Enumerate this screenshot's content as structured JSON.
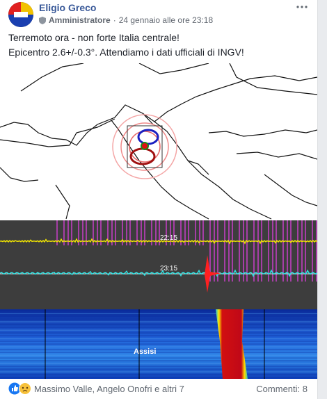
{
  "post": {
    "author": "Eligio Greco",
    "role": "Amministratore",
    "date": "24 gennaio alle ore 23:18",
    "text": [
      "Terremoto ora - non forte Italia centrale!",
      "Epicentro 2.6+/-0.3°. Attendiamo i dati ufficiali di INGV!"
    ]
  },
  "image": {
    "labels": [
      "22:15",
      "23:15",
      "Assisi"
    ]
  },
  "footer": {
    "reactions": "Massimo Valle, Angelo Onofri e altri 7",
    "comments": "Commenti: 8"
  }
}
